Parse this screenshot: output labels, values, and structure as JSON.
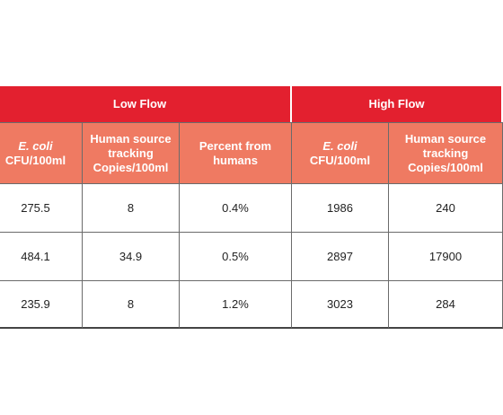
{
  "table": {
    "groups": [
      "Low Flow",
      "High Flow"
    ],
    "subheaders": [
      [
        "E. coli",
        "CFU/100ml"
      ],
      [
        "Human source tracking",
        "Copies/100ml"
      ],
      [
        "Percent from humans"
      ],
      [
        "E. coli",
        "CFU/100ml"
      ],
      [
        "Human source tracking",
        "Copies/100ml"
      ]
    ],
    "rows": [
      [
        "275.5",
        "8",
        "0.4%",
        "1986",
        "240"
      ],
      [
        "484.1",
        "34.9",
        "0.5%",
        "2897",
        "17900"
      ],
      [
        "235.9",
        "8",
        "1.2%",
        "3023",
        "284"
      ]
    ]
  }
}
